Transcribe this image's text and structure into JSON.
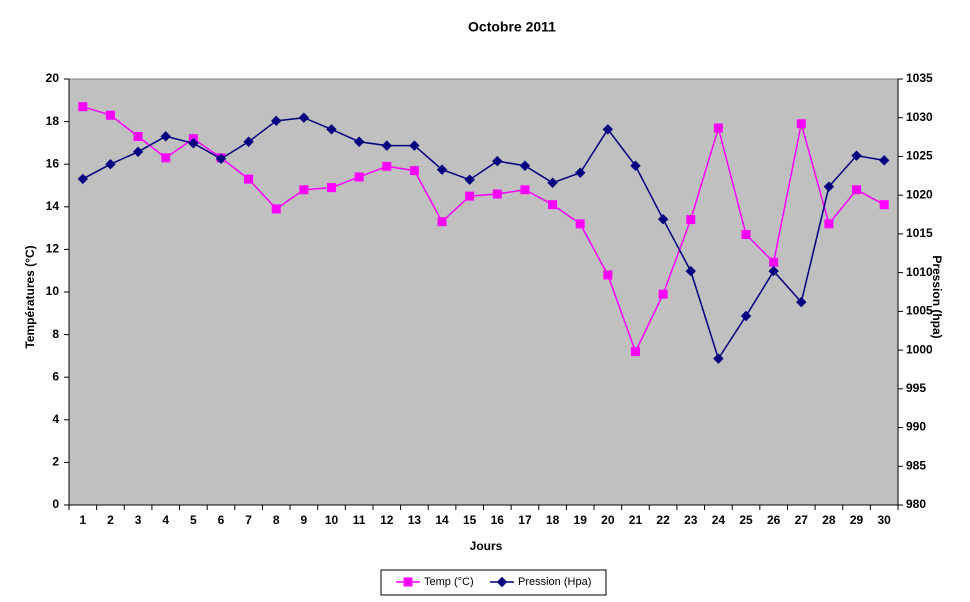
{
  "chart_data": {
    "type": "line",
    "title": "Octobre 2011",
    "x_label": "Jours",
    "y_label": "Températures (°C)",
    "y2_label": "Pression (hpa)",
    "categories": [
      "1",
      "2",
      "3",
      "4",
      "5",
      "6",
      "7",
      "8",
      "9",
      "10",
      "11",
      "12",
      "13",
      "14",
      "15",
      "16",
      "17",
      "18",
      "19",
      "20",
      "21",
      "22",
      "23",
      "24",
      "25",
      "26",
      "27",
      "28",
      "29",
      "30"
    ],
    "series": [
      {
        "name": "Temp (°C)",
        "color": "#ff00ff",
        "marker": "square",
        "values": [
          18.7,
          18.3,
          17.3,
          16.3,
          17.2,
          16.3,
          15.3,
          13.9,
          14.8,
          14.9,
          15.4,
          15.9,
          15.7,
          13.3,
          14.5,
          14.6,
          14.8,
          14.1,
          13.2,
          10.8,
          7.2,
          9.9,
          13.4,
          17.7,
          12.7,
          11.4,
          17.9,
          13.2,
          14.8,
          14.1
        ]
      },
      {
        "name": "Pression (Hpa)",
        "color": "#000080",
        "marker": "diamond",
        "axis": "y2",
        "values": [
          1022.1,
          1024.0,
          1025.6,
          1027.6,
          1026.7,
          1024.7,
          1026.9,
          1029.6,
          1030.0,
          1028.5,
          1026.9,
          1026.4,
          1026.4,
          1023.3,
          1022.0,
          1024.4,
          1023.8,
          1021.6,
          1022.9,
          1028.5,
          1023.8,
          1016.9,
          1010.2,
          998.9,
          1004.4,
          1010.2,
          1006.2,
          1021.1,
          1025.1,
          1024.5
        ]
      }
    ],
    "ylim": [
      0,
      20
    ],
    "yticks": [
      0,
      2,
      4,
      6,
      8,
      10,
      12,
      14,
      16,
      18,
      20
    ],
    "y2lim": [
      980,
      1035
    ],
    "y2ticks": [
      980,
      985,
      990,
      995,
      1000,
      1005,
      1010,
      1015,
      1020,
      1025,
      1030,
      1035
    ],
    "plot_background": "#c0c0c0",
    "legend": "bottom"
  }
}
